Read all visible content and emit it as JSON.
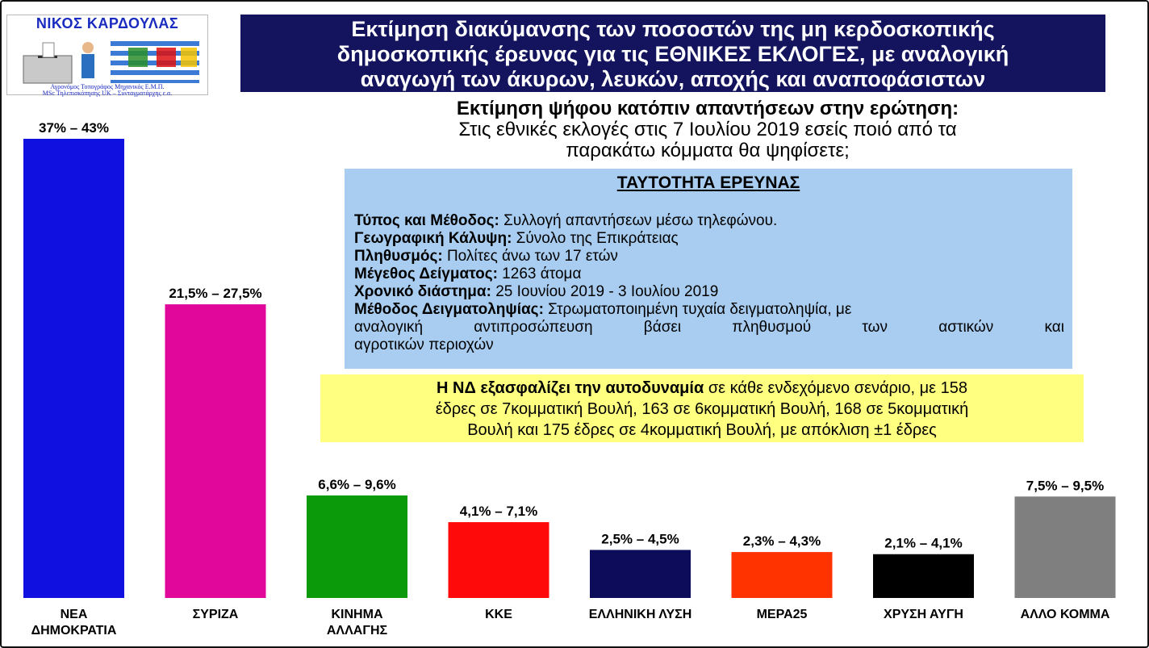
{
  "logo": {
    "name": "ΝΙΚΟΣ ΚΑΡΔΟΥΛΑΣ",
    "line1": "Αγρονόμος Τοπογράφος Μηχανικός Ε.Μ.Π.",
    "line2": "MSc Τηλεπισκόπησης UK – Συνταγματάρχης ε.α."
  },
  "header": {
    "line1": "Εκτίμηση διακύμανσης των ποσοστών της μη κερδοσκοπικής",
    "line2": "δημοσκοπικής έρευνας για τις ΕΘΝΙΚΕΣ ΕΚΛΟΓΕΣ, με αναλογική",
    "line3": "αναγωγή των άκυρων, λευκών, αποχής και αναποφάσιστων"
  },
  "question": {
    "heading": "Εκτίμηση ψήφου κατόπιν απαντήσεων στην ερώτηση:",
    "line1": "Στις εθνικές εκλογές στις 7 Ιουλίου 2019 εσείς ποιό από τα",
    "line2": "παρακάτω κόμματα θα ψηφίσετε;"
  },
  "survey": {
    "heading": "ΤΑΥΤΟΤΗΤΑ ΕΡΕΥΝΑΣ",
    "type_label": "Τύπος και Μέθοδος:",
    "type_value": " Συλλογή απαντήσεων μέσω τηλεφώνου.",
    "coverage_label": "Γεωγραφική Κάλυψη:",
    "coverage_value": " Σύνολο της Επικράτειας",
    "population_label": "Πληθυσμός:",
    "population_value": " Πολίτες άνω των 17 ετών",
    "sample_label": "Μέγεθος Δείγματος:",
    "sample_value": "  1263 άτομα",
    "period_label": "Χρονικό διάστημα:",
    "period_value": " 25 Ιουνίου 2019 - 3 Ιουλίου 2019",
    "method_label": "Μέθοδος Δειγματοληψίας:",
    "method_value": " Στρωματοποιημένη τυχαία δειγματοληψία, με",
    "method_line2": "αναλογική αντιπροσώπευση βάσει πληθυσμού των αστικών και",
    "method_line3": "αγροτικών περιοχών"
  },
  "note": {
    "bold": "Η ΝΔ εξασφαλίζει την αυτοδυναμία",
    "line1_rest": " σε κάθε ενδεχόμενο σενάριο, με 158",
    "line2": "έδρες σε 7κομματική Βουλή, 163 σε 6κομματική Βουλή, 168 σε 5κομματική",
    "line3": "Βουλή και 175 έδρες σε 4κομματική Βουλή, με απόκλιση ±1 έδρες"
  },
  "chart_data": {
    "type": "bar",
    "categories": [
      [
        "ΝΕΑ",
        "ΔΗΜΟΚΡΑΤΙΑ"
      ],
      [
        "ΣΥΡΙΖΑ"
      ],
      [
        "ΚΙΝΗΜΑ",
        "ΑΛΛΑΓΗΣ"
      ],
      [
        "ΚΚΕ"
      ],
      [
        "ΕΛΛΗΝΙΚΗ ΛΥΣΗ"
      ],
      [
        "ΜΕΡΑ25"
      ],
      [
        "ΧΡΥΣΗ ΑΥΓΗ"
      ],
      [
        "ΑΛΛΟ ΚΟΜΜΑ"
      ]
    ],
    "ranges": [
      [
        37,
        43
      ],
      [
        21.5,
        27.5
      ],
      [
        6.6,
        9.6
      ],
      [
        4.1,
        7.1
      ],
      [
        2.5,
        4.5
      ],
      [
        2.3,
        4.3
      ],
      [
        2.1,
        4.1
      ],
      [
        7.5,
        9.5
      ]
    ],
    "value_labels": [
      "37% – 43%",
      "21,5% – 27,5%",
      "6,6% – 9,6%",
      "4,1% – 7,1%",
      "2,5% – 4,5%",
      "2,3% – 4,3%",
      "2,1% – 4,1%",
      "7,5% – 9,5%"
    ],
    "values": [
      40,
      24.5,
      8.1,
      5.6,
      3.5,
      3.3,
      3.1,
      8.5
    ],
    "colors": [
      "#1010e0",
      "#e0079a",
      "#0a9a0a",
      "#ff0a0a",
      "#0c0c5a",
      "#ff3300",
      "#000000",
      "#7f7f7f"
    ],
    "ylim": [
      0,
      43
    ],
    "grid": false,
    "legend": "none"
  }
}
